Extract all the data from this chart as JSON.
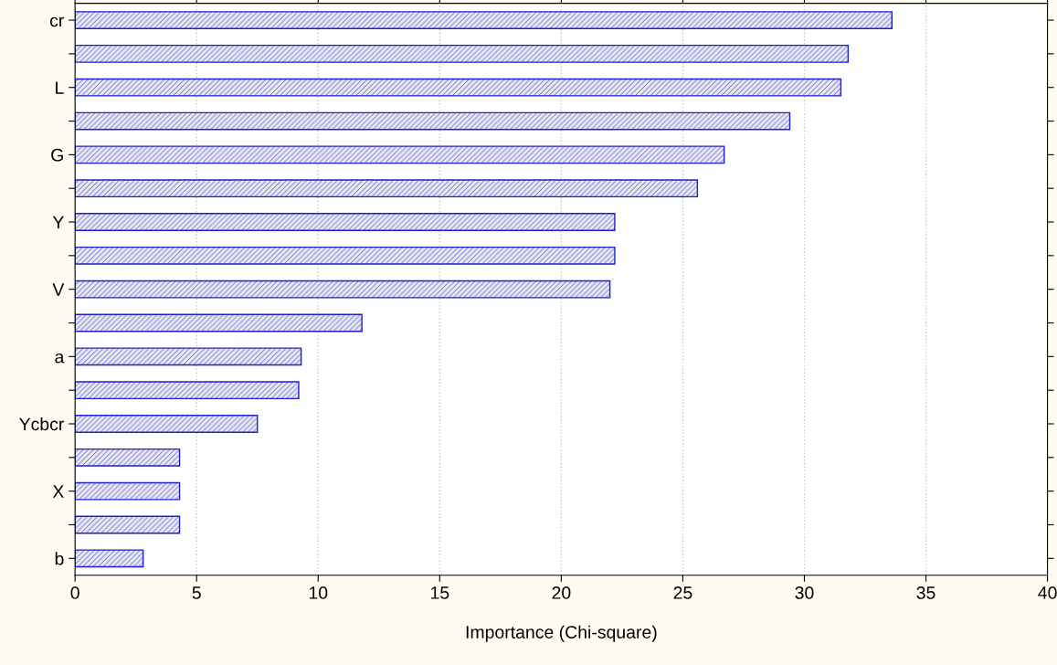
{
  "chart_data": {
    "type": "bar",
    "orientation": "horizontal",
    "xlabel": "Importance (Chi-square)",
    "categories": [
      "cr",
      null,
      "L",
      null,
      "G",
      null,
      "Y",
      null,
      "V",
      null,
      "a",
      null,
      "Ycbcr",
      null,
      "X",
      null,
      "b"
    ],
    "values": [
      33.6,
      31.8,
      31.5,
      29.4,
      26.7,
      25.6,
      22.2,
      22.2,
      22.0,
      11.8,
      9.3,
      9.2,
      7.5,
      4.3,
      4.3,
      4.3,
      2.8
    ],
    "color": "#1f1fcc",
    "xlim": [
      0,
      40
    ],
    "xticks": [
      0,
      5,
      10,
      15,
      20,
      25,
      30,
      35,
      40
    ],
    "grid": "x"
  }
}
